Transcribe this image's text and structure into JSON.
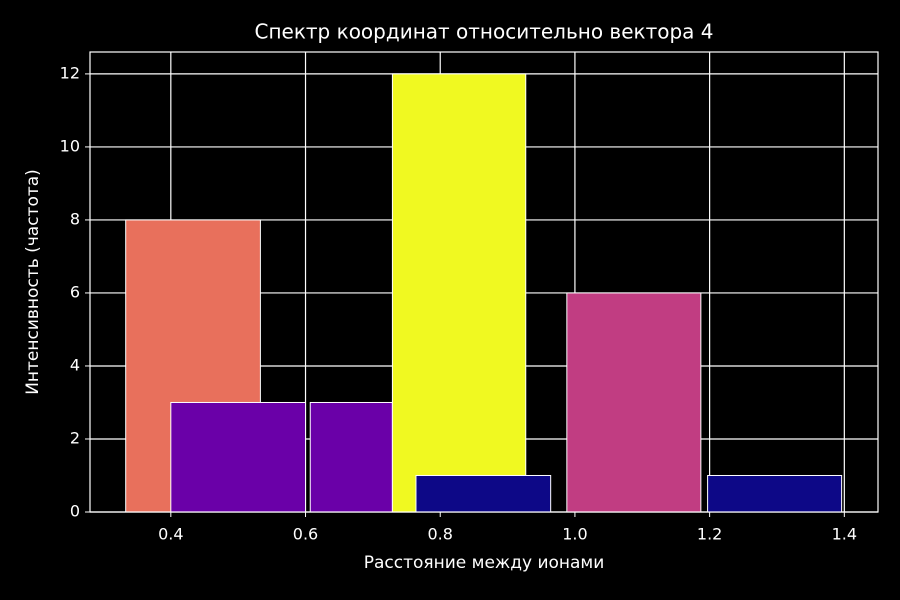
{
  "chart_data": {
    "type": "bar",
    "title": "Спектр координат относительно вектора 4",
    "x_label": "Расстояние между ионами",
    "y_label": "Интенсивность (частота)",
    "x_left": [
      0.333,
      0.4,
      0.607,
      0.729,
      0.764,
      0.988,
      1.197
    ],
    "x_right": [
      0.533,
      0.6,
      0.729,
      0.927,
      0.964,
      1.187,
      1.396
    ],
    "values": [
      8,
      3,
      3,
      12,
      1,
      6,
      1
    ],
    "colors": [
      "#e8705c",
      "#6a00a8",
      "#6a00a8",
      "#f0f921",
      "#0d0887",
      "#c13d82",
      "#0d0887"
    ],
    "xlim": [
      0.28,
      1.45
    ],
    "ylim": [
      0,
      12.6
    ],
    "xticks": [
      0.4,
      0.6,
      0.8,
      {
        "value": 1,
        "label": "1.0"
      },
      1.2,
      1.4
    ],
    "yticks": [
      0,
      2,
      4,
      6,
      8,
      10,
      12
    ],
    "grid": true
  }
}
